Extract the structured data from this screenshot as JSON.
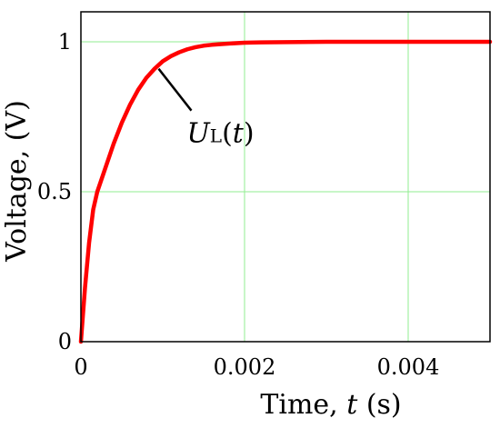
{
  "chart_data": {
    "type": "line",
    "title": "",
    "xlabel": "Time, t (s)",
    "xlabel_parts": {
      "prefix": "Time, ",
      "var": "t",
      "suffix": " (s)"
    },
    "ylabel": "Voltage, (V)",
    "xlim": [
      0,
      0.005
    ],
    "ylim": [
      0,
      1.1
    ],
    "x_ticks": [
      0,
      0.002,
      0.004
    ],
    "x_tick_labels": [
      "0",
      "0.002",
      "0.004"
    ],
    "y_ticks": [
      0,
      0.5,
      1
    ],
    "y_tick_labels": [
      "0",
      "0.5",
      "1"
    ],
    "grid": true,
    "colors": {
      "line": "#ff0000",
      "grid": "#90ee90",
      "axis": "#000000"
    },
    "series": [
      {
        "x": [
          0,
          5e-05,
          0.0001,
          0.00015,
          0.0002,
          0.0003,
          0.0004,
          0.0005,
          0.0006,
          0.0007,
          0.0008,
          0.0009,
          0.001,
          0.0011,
          0.0012,
          0.0013,
          0.0014,
          0.0015,
          0.0016,
          0.0018,
          0.002,
          0.0022,
          0.0025,
          0.003,
          0.0035,
          0.004,
          0.0045,
          0.005
        ],
        "y": [
          0,
          0.18,
          0.33,
          0.44,
          0.5,
          0.58,
          0.66,
          0.73,
          0.79,
          0.84,
          0.88,
          0.91,
          0.935,
          0.952,
          0.965,
          0.975,
          0.982,
          0.987,
          0.99,
          0.994,
          0.997,
          0.998,
          0.999,
          1.0,
          1.0,
          1.0,
          1.0,
          1.0
        ]
      }
    ],
    "annotations": [
      {
        "main": "U",
        "sub": "L",
        "tail": "(t)",
        "x": 0.00095,
        "y": 0.91
      }
    ]
  }
}
